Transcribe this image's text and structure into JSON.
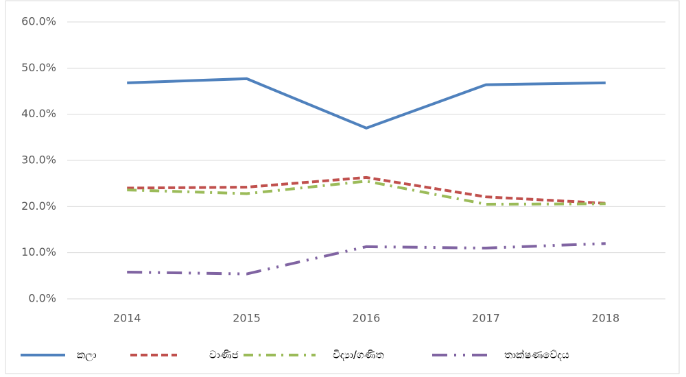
{
  "chart_data": {
    "type": "line",
    "categories": [
      "2014",
      "2015",
      "2016",
      "2017",
      "2018"
    ],
    "series": [
      {
        "name": "කලා",
        "color": "#4f81bd",
        "values": [
          46.8,
          47.7,
          37.0,
          46.4,
          46.8
        ]
      },
      {
        "name": "වාණිජ",
        "color": "#c0504d",
        "values": [
          24.0,
          24.2,
          26.3,
          22.1,
          20.7
        ]
      },
      {
        "name": "විද්‍යා/ගණිත",
        "color": "#9bbb59",
        "values": [
          23.6,
          22.8,
          25.5,
          20.5,
          20.6
        ]
      },
      {
        "name": "තාක්ෂණවේදය",
        "color": "#8064a2",
        "values": [
          5.8,
          5.4,
          11.3,
          11.0,
          12.0
        ]
      }
    ],
    "ylim": [
      0,
      60
    ],
    "yticks": [
      {
        "value": 0,
        "label": "0.0%"
      },
      {
        "value": 10,
        "label": "10.0%"
      },
      {
        "value": 20,
        "label": "20.0%"
      },
      {
        "value": 30,
        "label": "30.0%"
      },
      {
        "value": 40,
        "label": "40.0%"
      },
      {
        "value": 50,
        "label": "50.0%"
      },
      {
        "value": 60,
        "label": "60.0%"
      }
    ],
    "grid": true,
    "legend": "bottom"
  }
}
